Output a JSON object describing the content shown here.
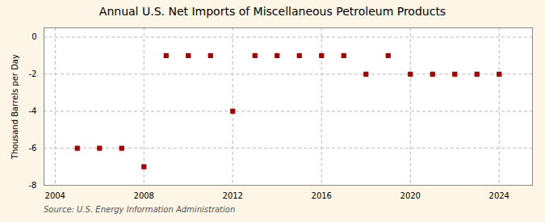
{
  "chart_data": {
    "type": "scatter",
    "title": "Annual U.S. Net Imports of Miscellaneous Petroleum Products",
    "ylabel": "Thousand Barrels per Day",
    "caption": "Source: U.S. Energy Information Administration",
    "x": [
      2005,
      2006,
      2007,
      2008,
      2009,
      2010,
      2011,
      2012,
      2013,
      2014,
      2015,
      2016,
      2017,
      2018,
      2019,
      2020,
      2021,
      2022,
      2023,
      2024
    ],
    "values": [
      -6,
      -6,
      -6,
      -7,
      -1,
      -1,
      -1,
      -4,
      -1,
      -1,
      -1,
      -1,
      -1,
      -2,
      -1,
      -2,
      -2,
      -2,
      -2,
      -2
    ],
    "color": "#aa0000",
    "marker": "square",
    "xlim": [
      2003.5,
      2025.5
    ],
    "xticks": [
      2004,
      2008,
      2012,
      2016,
      2020,
      2024
    ],
    "ylim": [
      -8,
      0.5
    ],
    "yticks": [
      0,
      -2,
      -4,
      -6,
      -8
    ],
    "grid": true
  }
}
